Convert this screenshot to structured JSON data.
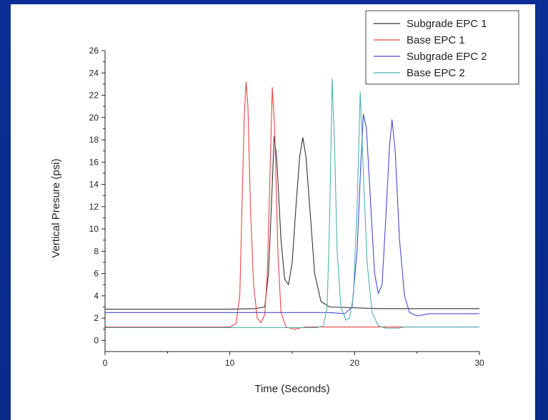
{
  "chart_data": {
    "type": "line",
    "title": "",
    "xlabel": "Time (Seconds)",
    "ylabel": "Vertical Presure (psi)",
    "xlim": [
      0,
      30
    ],
    "ylim": [
      -1,
      26
    ],
    "x_ticks": [
      0,
      10,
      20,
      30
    ],
    "y_ticks": [
      0,
      2,
      4,
      6,
      8,
      10,
      12,
      14,
      16,
      18,
      20,
      22,
      24,
      26
    ],
    "grid": false,
    "legend_position": "top-right",
    "series": [
      {
        "name": "Subgrade EPC 1",
        "color": "#333333",
        "points": [
          [
            0,
            2.8
          ],
          [
            10,
            2.8
          ],
          [
            12,
            2.85
          ],
          [
            12.8,
            3.0
          ],
          [
            13.1,
            6
          ],
          [
            13.4,
            14
          ],
          [
            13.55,
            18.3
          ],
          [
            13.75,
            16.5
          ],
          [
            14.1,
            9
          ],
          [
            14.4,
            5.5
          ],
          [
            14.7,
            5
          ],
          [
            15.0,
            7
          ],
          [
            15.3,
            12
          ],
          [
            15.6,
            16.5
          ],
          [
            15.85,
            18.2
          ],
          [
            16.1,
            16.5
          ],
          [
            16.4,
            12
          ],
          [
            16.8,
            6
          ],
          [
            17.3,
            3.5
          ],
          [
            18,
            3.0
          ],
          [
            22,
            2.85
          ],
          [
            30,
            2.85
          ]
        ]
      },
      {
        "name": "Base EPC 1",
        "color": "#e84545",
        "points": [
          [
            0,
            1.2
          ],
          [
            10,
            1.2
          ],
          [
            10.5,
            1.5
          ],
          [
            10.8,
            4
          ],
          [
            11.0,
            13
          ],
          [
            11.15,
            20
          ],
          [
            11.3,
            23.2
          ],
          [
            11.45,
            21
          ],
          [
            11.65,
            12
          ],
          [
            11.9,
            5
          ],
          [
            12.2,
            2
          ],
          [
            12.5,
            1.6
          ],
          [
            12.8,
            2.3
          ],
          [
            13.0,
            6
          ],
          [
            13.2,
            14
          ],
          [
            13.4,
            22.7
          ],
          [
            13.6,
            19
          ],
          [
            13.85,
            8
          ],
          [
            14.1,
            2.5
          ],
          [
            14.5,
            1.2
          ],
          [
            15.2,
            1.0
          ],
          [
            16,
            1.2
          ],
          [
            30,
            1.2
          ]
        ]
      },
      {
        "name": "Subgrade EPC 2",
        "color": "#4a4acf",
        "points": [
          [
            0,
            2.5
          ],
          [
            14,
            2.5
          ],
          [
            18,
            2.5
          ],
          [
            19.2,
            2.4
          ],
          [
            19.8,
            3
          ],
          [
            20.2,
            8
          ],
          [
            20.5,
            16
          ],
          [
            20.7,
            20.3
          ],
          [
            20.95,
            19
          ],
          [
            21.3,
            12
          ],
          [
            21.6,
            6
          ],
          [
            21.9,
            4.2
          ],
          [
            22.2,
            5
          ],
          [
            22.5,
            11
          ],
          [
            22.8,
            17.5
          ],
          [
            23.0,
            19.8
          ],
          [
            23.25,
            17
          ],
          [
            23.6,
            9
          ],
          [
            24.0,
            4
          ],
          [
            24.4,
            2.5
          ],
          [
            25,
            2.2
          ],
          [
            26,
            2.4
          ],
          [
            30,
            2.4
          ]
        ]
      },
      {
        "name": "Base EPC 2",
        "color": "#4fb3b0",
        "points": [
          [
            0,
            1.15
          ],
          [
            17,
            1.15
          ],
          [
            17.5,
            1.3
          ],
          [
            17.8,
            3
          ],
          [
            18.0,
            11
          ],
          [
            18.2,
            23.5
          ],
          [
            18.4,
            17
          ],
          [
            18.6,
            8
          ],
          [
            18.9,
            3
          ],
          [
            19.3,
            1.8
          ],
          [
            19.6,
            2
          ],
          [
            19.9,
            4
          ],
          [
            20.2,
            12
          ],
          [
            20.45,
            22.3
          ],
          [
            20.7,
            15
          ],
          [
            21.0,
            7
          ],
          [
            21.4,
            2.5
          ],
          [
            21.9,
            1.3
          ],
          [
            22.5,
            1.1
          ],
          [
            23.5,
            1.1
          ],
          [
            24,
            1.2
          ],
          [
            30,
            1.2
          ]
        ]
      }
    ]
  }
}
